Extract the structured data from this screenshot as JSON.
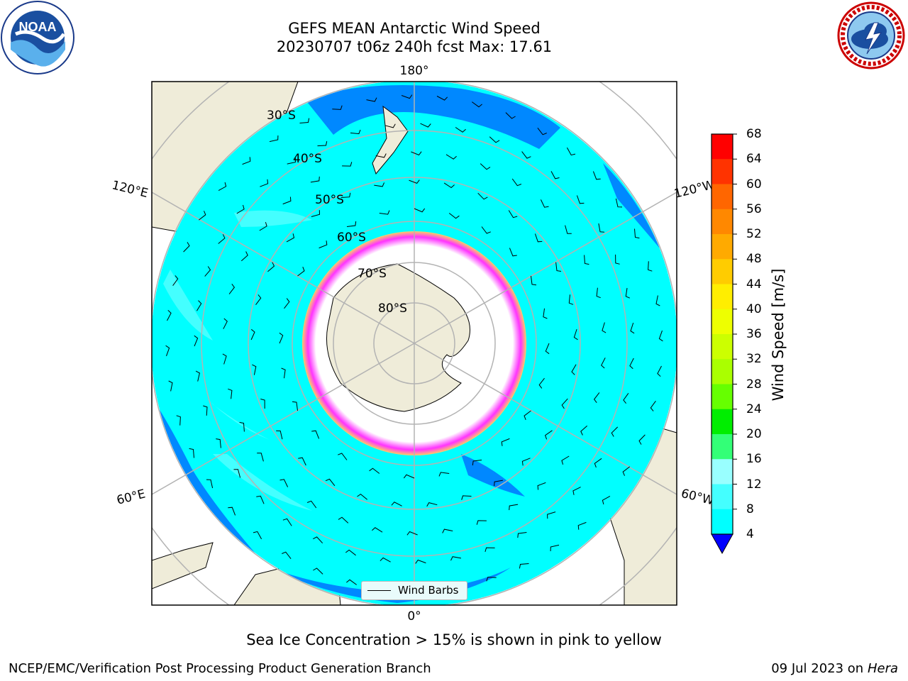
{
  "header": {
    "title_line1": "GEFS MEAN Antarctic Wind Speed",
    "title_line2": "20230707 t06z 240h fcst   Max: 17.61"
  },
  "logos": {
    "left": "noaa-logo",
    "left_text": "NOAA",
    "right": "nws-logo"
  },
  "map": {
    "projection": "south-polar-stereographic",
    "longitude_labels": [
      "180°",
      "120°E",
      "120°W",
      "60°E",
      "60°W",
      "0°"
    ],
    "latitude_labels": [
      "30°S",
      "40°S",
      "50°S",
      "60°S",
      "70°S",
      "80°S"
    ],
    "legend": {
      "label": "Wind Barbs"
    },
    "colors": {
      "land": "#efecd9",
      "ice_free_shelf": "#ffffff",
      "sea_ice_edge": [
        "#ff33ff",
        "#ffcc66"
      ],
      "grid": "#b3b3b3"
    }
  },
  "colorbar": {
    "label": "Wind Speed [m/s]",
    "ticks": [
      "68",
      "64",
      "60",
      "56",
      "52",
      "48",
      "44",
      "40",
      "36",
      "32",
      "28",
      "24",
      "20",
      "16",
      "12",
      "8",
      "4"
    ],
    "colors": [
      "#ff0000",
      "#ff3300",
      "#ff6600",
      "#ff8800",
      "#ffaa00",
      "#ffcc00",
      "#ffee00",
      "#eeff00",
      "#ccff00",
      "#aaff00",
      "#66ff00",
      "#00ee00",
      "#33ff77",
      "#99ffff",
      "#44ffff",
      "#00ffff",
      "#0088ff"
    ],
    "extend_color": "#0000ff"
  },
  "footer": {
    "note": "Sea Ice Concentration > 15% is shown in pink to yellow",
    "credit": "NCEP/EMC/Verification Post Processing Product Generation Branch",
    "date": "09 Jul 2023 on",
    "host": "Hera"
  }
}
